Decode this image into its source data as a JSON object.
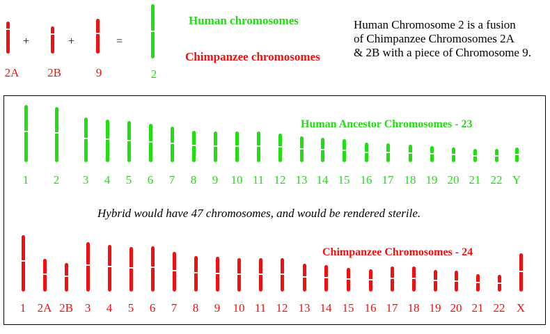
{
  "colors": {
    "human": "#22dd11",
    "chimp": "#ee1111"
  },
  "fusion": {
    "items": [
      {
        "label": "2A",
        "color": "chimp"
      },
      {
        "label": "2B",
        "color": "chimp"
      },
      {
        "label": "9",
        "color": "chimp"
      },
      {
        "label": "2",
        "color": "human"
      }
    ],
    "ops": [
      "+",
      "+",
      "="
    ]
  },
  "legend": {
    "human": "Human chromosomes",
    "chimp": "Chimpanzee chromosomes"
  },
  "description": [
    "Human Chromosome 2 is a fusion",
    "of Chimpanzee Chromosomes 2A",
    "& 2B with a piece of Chromosome 9."
  ],
  "human_section": {
    "title": "Human Ancestor Chromosomes - 23",
    "labels": [
      "1",
      "2",
      "3",
      "4",
      "5",
      "6",
      "7",
      "8",
      "9",
      "10",
      "11",
      "12",
      "13",
      "14",
      "15",
      "16",
      "17",
      "18",
      "19",
      "20",
      "21",
      "22",
      "Y"
    ]
  },
  "note": "Hybrid would have 47 chromosomes, and would be rendered sterile.",
  "chimp_section": {
    "title": "Chimpanzee Chromosomes - 24",
    "labels": [
      "1",
      "2A",
      "2B",
      "3",
      "4",
      "5",
      "6",
      "7",
      "8",
      "9",
      "10",
      "11",
      "12",
      "13",
      "14",
      "15",
      "16",
      "17",
      "18",
      "19",
      "20",
      "21",
      "22",
      "X"
    ]
  }
}
